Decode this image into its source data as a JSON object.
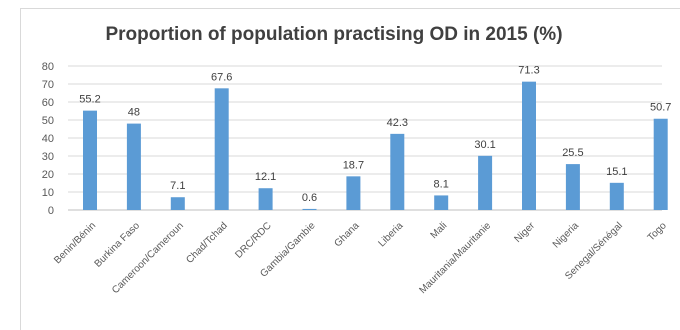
{
  "chart_data": {
    "type": "bar",
    "title": "Proportion of population practising OD in 2015 (%)",
    "xlabel": "",
    "ylabel": "",
    "categories": [
      "Benin/Bénin",
      "Burkina Faso",
      "Cameroon/Cameroun",
      "Chad/Tchad",
      "DRC/RDC",
      "Gambia/Gambie",
      "Ghana",
      "Liberia",
      "Mali",
      "Mauritania/Mauritanie",
      "Niger",
      "Nigeria",
      "Senegal/Sénégal",
      "Togo"
    ],
    "values": [
      55.2,
      48,
      7.1,
      67.6,
      12.1,
      0.6,
      18.7,
      42.3,
      8.1,
      30.1,
      71.3,
      25.5,
      15.1,
      50.7
    ],
    "value_labels": [
      "55.2",
      "48",
      "7.1",
      "67.6",
      "12.1",
      "0.6",
      "18.7",
      "42.3",
      "8.1",
      "30.1",
      "71.3",
      "25.5",
      "15.1",
      "50.7"
    ],
    "ylim": [
      0,
      80
    ],
    "yticks": [
      "0",
      "10",
      "20",
      "30",
      "40",
      "50",
      "60",
      "70",
      "80"
    ],
    "grid": true,
    "legend": "none",
    "bar_color": "#5b9bd5"
  }
}
